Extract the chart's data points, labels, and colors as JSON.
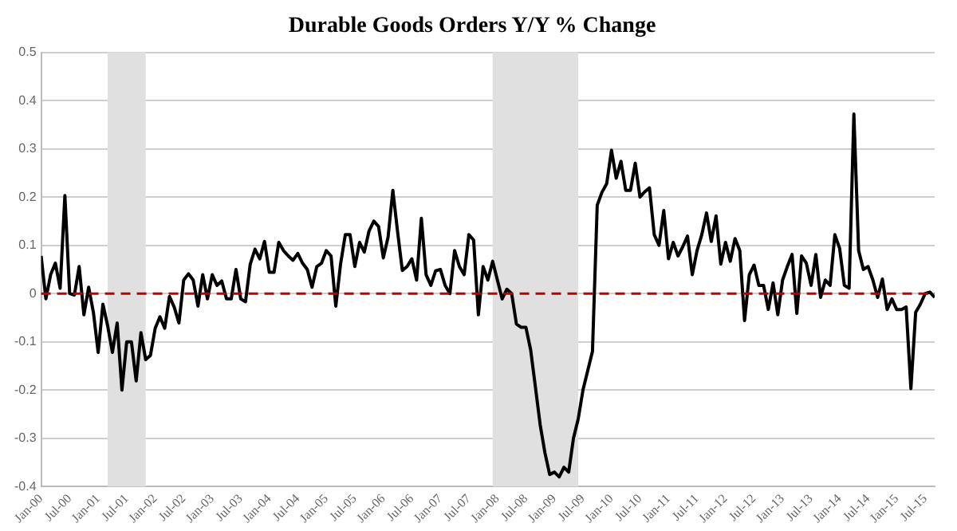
{
  "chart_data": {
    "type": "line",
    "title": "Durable Goods Orders Y/Y % Change",
    "x": [
      "2000-01",
      "2000-02",
      "2000-03",
      "2000-04",
      "2000-05",
      "2000-06",
      "2000-07",
      "2000-08",
      "2000-09",
      "2000-10",
      "2000-11",
      "2000-12",
      "2001-01",
      "2001-02",
      "2001-03",
      "2001-04",
      "2001-05",
      "2001-06",
      "2001-07",
      "2001-08",
      "2001-09",
      "2001-10",
      "2001-11",
      "2001-12",
      "2002-01",
      "2002-02",
      "2002-03",
      "2002-04",
      "2002-05",
      "2002-06",
      "2002-07",
      "2002-08",
      "2002-09",
      "2002-10",
      "2002-11",
      "2002-12",
      "2003-01",
      "2003-02",
      "2003-03",
      "2003-04",
      "2003-05",
      "2003-06",
      "2003-07",
      "2003-08",
      "2003-09",
      "2003-10",
      "2003-11",
      "2003-12",
      "2004-01",
      "2004-02",
      "2004-03",
      "2004-04",
      "2004-05",
      "2004-06",
      "2004-07",
      "2004-08",
      "2004-09",
      "2004-10",
      "2004-11",
      "2004-12",
      "2005-01",
      "2005-02",
      "2005-03",
      "2005-04",
      "2005-05",
      "2005-06",
      "2005-07",
      "2005-08",
      "2005-09",
      "2005-10",
      "2005-11",
      "2005-12",
      "2006-01",
      "2006-02",
      "2006-03",
      "2006-04",
      "2006-05",
      "2006-06",
      "2006-07",
      "2006-08",
      "2006-09",
      "2006-10",
      "2006-11",
      "2006-12",
      "2007-01",
      "2007-02",
      "2007-03",
      "2007-04",
      "2007-05",
      "2007-06",
      "2007-07",
      "2007-08",
      "2007-09",
      "2007-10",
      "2007-11",
      "2007-12",
      "2008-01",
      "2008-02",
      "2008-03",
      "2008-04",
      "2008-05",
      "2008-06",
      "2008-07",
      "2008-08",
      "2008-09",
      "2008-10",
      "2008-11",
      "2008-12",
      "2009-01",
      "2009-02",
      "2009-03",
      "2009-04",
      "2009-05",
      "2009-06",
      "2009-07",
      "2009-08",
      "2009-09",
      "2009-10",
      "2009-11",
      "2009-12",
      "2010-01",
      "2010-02",
      "2010-03",
      "2010-04",
      "2010-05",
      "2010-06",
      "2010-07",
      "2010-08",
      "2010-09",
      "2010-10",
      "2010-11",
      "2010-12",
      "2011-01",
      "2011-02",
      "2011-03",
      "2011-04",
      "2011-05",
      "2011-06",
      "2011-07",
      "2011-08",
      "2011-09",
      "2011-10",
      "2011-11",
      "2011-12",
      "2012-01",
      "2012-02",
      "2012-03",
      "2012-04",
      "2012-05",
      "2012-06",
      "2012-07",
      "2012-08",
      "2012-09",
      "2012-10",
      "2012-11",
      "2012-12",
      "2013-01",
      "2013-02",
      "2013-03",
      "2013-04",
      "2013-05",
      "2013-06",
      "2013-07",
      "2013-08",
      "2013-09",
      "2013-10",
      "2013-11",
      "2013-12",
      "2014-01",
      "2014-02",
      "2014-03",
      "2014-04",
      "2014-05",
      "2014-06",
      "2014-07",
      "2014-08",
      "2014-09",
      "2014-10",
      "2014-11",
      "2014-12",
      "2015-01",
      "2015-02",
      "2015-03",
      "2015-04",
      "2015-05",
      "2015-06",
      "2015-07",
      "2015-08",
      "2015-09"
    ],
    "series": [
      {
        "color": "#000000",
        "values": [
          0.078,
          -0.011,
          0.039,
          0.063,
          0.011,
          0.203,
          0,
          -0.003,
          0.056,
          -0.044,
          0.013,
          -0.039,
          -0.122,
          -0.022,
          -0.067,
          -0.122,
          -0.061,
          -0.2,
          -0.1,
          -0.1,
          -0.181,
          -0.081,
          -0.137,
          -0.128,
          -0.072,
          -0.048,
          -0.072,
          -0.006,
          -0.028,
          -0.061,
          0.028,
          0.041,
          0.028,
          -0.026,
          0.039,
          -0.011,
          0.039,
          0.017,
          0.026,
          -0.011,
          -0.011,
          0.05,
          -0.011,
          -0.017,
          0.061,
          0.092,
          0.072,
          0.108,
          0.044,
          0.044,
          0.106,
          0.089,
          0.078,
          0.069,
          0.083,
          0.063,
          0.05,
          0.013,
          0.056,
          0.063,
          0.089,
          0.078,
          -0.026,
          0.061,
          0.122,
          0.122,
          0.056,
          0.106,
          0.086,
          0.13,
          0.15,
          0.139,
          0.074,
          0.117,
          0.214,
          0.128,
          0.048,
          0.056,
          0.072,
          0.028,
          0.156,
          0.039,
          0.017,
          0.047,
          0.05,
          0.017,
          0,
          0.089,
          0.056,
          0.039,
          0.122,
          0.111,
          -0.044,
          0.056,
          0.028,
          0.067,
          0.028,
          -0.011,
          0.009,
          0,
          -0.063,
          -0.07,
          -0.07,
          -0.117,
          -0.194,
          -0.272,
          -0.33,
          -0.375,
          -0.37,
          -0.38,
          -0.36,
          -0.37,
          -0.3,
          -0.26,
          -0.2,
          -0.16,
          -0.12,
          0.183,
          0.21,
          0.228,
          0.297,
          0.239,
          0.274,
          0.214,
          0.214,
          0.27,
          0.2,
          0.211,
          0.219,
          0.122,
          0.1,
          0.172,
          0.072,
          0.106,
          0.078,
          0.097,
          0.119,
          0.039,
          0.089,
          0.122,
          0.167,
          0.108,
          0.161,
          0.061,
          0.106,
          0.067,
          0.114,
          0.089,
          -0.056,
          0.039,
          0.059,
          0.017,
          0.017,
          -0.033,
          0.022,
          -0.044,
          0.028,
          0.056,
          0.081,
          -0.041,
          0.078,
          0.063,
          0.017,
          0.081,
          -0.008,
          0.028,
          0.017,
          0.122,
          0.094,
          0.017,
          0.011,
          0.372,
          0.089,
          0.05,
          0.056,
          0.028,
          -0.008,
          0.03,
          -0.033,
          -0.011,
          -0.033,
          -0.033,
          -0.028,
          -0.197,
          -0.039,
          -0.022,
          0,
          0.003,
          -0.008
        ]
      }
    ],
    "xlim": [
      "2000-01",
      "2015-09"
    ],
    "xticks": [
      {
        "value": "2000-01",
        "label": "Jan-00"
      },
      {
        "value": "2000-07",
        "label": "Jul-00"
      },
      {
        "value": "2001-01",
        "label": "Jan-01"
      },
      {
        "value": "2001-07",
        "label": "Jul-01"
      },
      {
        "value": "2002-01",
        "label": "Jan-02"
      },
      {
        "value": "2002-07",
        "label": "Jul-02"
      },
      {
        "value": "2003-01",
        "label": "Jan-03"
      },
      {
        "value": "2003-07",
        "label": "Jul-03"
      },
      {
        "value": "2004-01",
        "label": "Jan-04"
      },
      {
        "value": "2004-07",
        "label": "Jul-04"
      },
      {
        "value": "2005-01",
        "label": "Jan-05"
      },
      {
        "value": "2005-07",
        "label": "Jul-05"
      },
      {
        "value": "2006-01",
        "label": "Jan-06"
      },
      {
        "value": "2006-07",
        "label": "Jul-06"
      },
      {
        "value": "2007-01",
        "label": "Jan-07"
      },
      {
        "value": "2007-07",
        "label": "Jul-07"
      },
      {
        "value": "2008-01",
        "label": "Jan-08"
      },
      {
        "value": "2008-07",
        "label": "Jul-08"
      },
      {
        "value": "2009-01",
        "label": "Jan-09"
      },
      {
        "value": "2009-07",
        "label": "Jul-09"
      },
      {
        "value": "2010-01",
        "label": "Jan-10"
      },
      {
        "value": "2010-07",
        "label": "Jul-10"
      },
      {
        "value": "2011-01",
        "label": "Jan-11"
      },
      {
        "value": "2011-07",
        "label": "Jul-11"
      },
      {
        "value": "2012-01",
        "label": "Jan-12"
      },
      {
        "value": "2012-07",
        "label": "Jul-12"
      },
      {
        "value": "2013-01",
        "label": "Jan-13"
      },
      {
        "value": "2013-07",
        "label": "Jul-13"
      },
      {
        "value": "2014-01",
        "label": "Jan-14"
      },
      {
        "value": "2014-07",
        "label": "Jul-14"
      },
      {
        "value": "2015-01",
        "label": "Jan-15"
      },
      {
        "value": "2015-07",
        "label": "Jul-15"
      }
    ],
    "ylim": [
      -0.4,
      0.5
    ],
    "yticks": [
      -0.4,
      -0.3,
      -0.2,
      -0.1,
      0,
      0.1,
      0.2,
      0.3,
      0.4,
      0.5
    ],
    "grid": "y",
    "marker": "none",
    "line_style": "solid",
    "ref_lines": [
      {
        "axis": "y",
        "value": 0,
        "color": "#c00000",
        "line_style": "dashed"
      }
    ],
    "bands": [
      {
        "axis": "x",
        "from": "2001-03",
        "to": "2001-11",
        "color": "#e0e0e0"
      },
      {
        "axis": "x",
        "from": "2007-12",
        "to": "2009-06",
        "color": "#e0e0e0"
      }
    ]
  }
}
